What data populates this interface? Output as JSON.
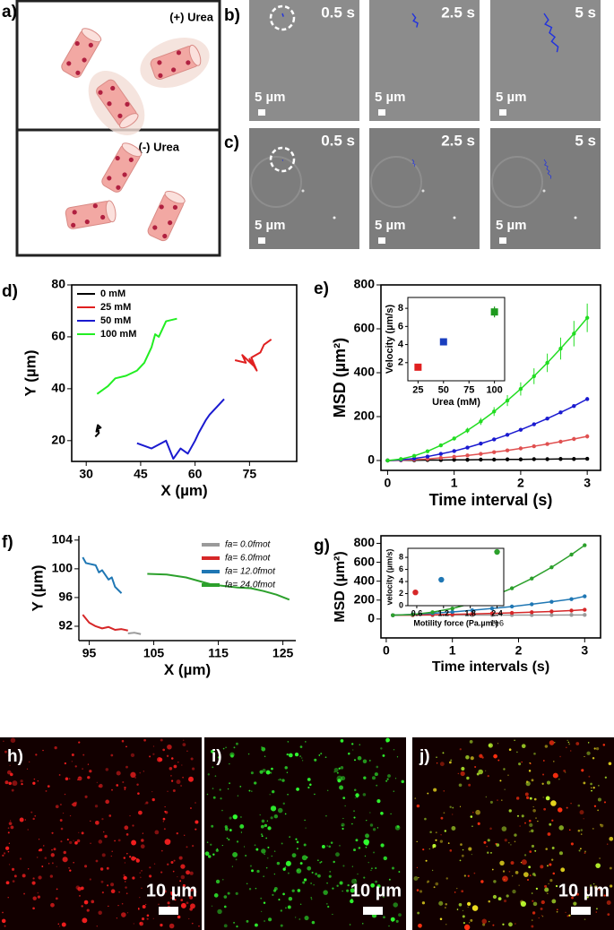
{
  "panel_labels": [
    "a)",
    "b)",
    "c)",
    "d)",
    "e)",
    "f)",
    "g)",
    "h)",
    "i)",
    "j)"
  ],
  "schematic": {
    "top_label": "(+) Urea",
    "bottom_label": "(-) Urea"
  },
  "micrographs": {
    "times": [
      "0.5 s",
      "2.5 s",
      "5 s"
    ],
    "scale_bar": "5 µm"
  },
  "fluorescence": {
    "scale_bar": "10 µm"
  },
  "chart_data": [
    {
      "type": "line",
      "xlabel": "X (µm)",
      "ylabel": "Y (µm)",
      "xlim": [
        26,
        88
      ],
      "ylim": [
        12,
        80
      ],
      "xticks": [
        30,
        45,
        60,
        75
      ],
      "yticks": [
        20,
        40,
        60,
        80
      ],
      "legend": "upper left",
      "series": [
        {
          "name": "0 mM",
          "color": "#000000",
          "x": [
            32.5,
            33.5,
            33,
            34,
            33.2,
            32.8,
            33.6
          ],
          "values": [
            21.5,
            23,
            24.5,
            25,
            26,
            23.5,
            24
          ]
        },
        {
          "name": "25 mM",
          "color": "#e02020",
          "x": [
            71,
            74,
            73,
            76,
            75,
            77,
            75.5,
            78,
            79,
            81
          ],
          "values": [
            51,
            50,
            53,
            49,
            51.5,
            47,
            52,
            54,
            57,
            59
          ]
        },
        {
          "name": "50 mM",
          "color": "#1a1ad0",
          "x": [
            44,
            48,
            52,
            54,
            56,
            58,
            60,
            61,
            63,
            64,
            66,
            68
          ],
          "values": [
            19,
            17,
            20,
            13,
            17,
            15,
            20,
            23,
            28,
            30,
            33,
            36
          ]
        },
        {
          "name": "100 mM",
          "color": "#22ee22",
          "x": [
            33,
            36,
            38,
            41,
            44,
            46,
            48,
            49,
            50,
            52,
            55
          ],
          "values": [
            38,
            41,
            44,
            45,
            47,
            50,
            56,
            61,
            60,
            66,
            67
          ]
        }
      ]
    },
    {
      "type": "line",
      "markers": true,
      "xlabel": "Time interval (s)",
      "ylabel": "MSD (µm²)",
      "xlim": [
        -0.1,
        3.2
      ],
      "ylim": [
        -45,
        800
      ],
      "xticks": [
        0,
        1,
        2,
        3
      ],
      "yticks": [
        0,
        200,
        400,
        600,
        800
      ],
      "x": [
        0,
        0.2,
        0.4,
        0.6,
        0.8,
        1.0,
        1.2,
        1.4,
        1.6,
        1.8,
        2.0,
        2.2,
        2.4,
        2.6,
        2.8,
        3.0
      ],
      "series": [
        {
          "name": "0 mM",
          "color": "#000000",
          "values": [
            0,
            1,
            1,
            2,
            2,
            3,
            3,
            4,
            4,
            5,
            5,
            6,
            6,
            7,
            7,
            8
          ]
        },
        {
          "name": "25 mM",
          "color": "#e05050",
          "values": [
            0,
            1,
            4,
            7,
            12,
            17,
            23,
            30,
            38,
            46,
            55,
            65,
            75,
            86,
            98,
            110
          ],
          "errors": [
            0,
            1,
            1,
            1,
            2,
            2,
            3,
            3,
            4,
            5,
            5,
            6,
            7,
            8,
            9,
            10
          ]
        },
        {
          "name": "50 mM",
          "color": "#1a1ad0",
          "values": [
            0,
            3,
            9,
            18,
            30,
            43,
            59,
            77,
            96,
            117,
            140,
            165,
            191,
            219,
            248,
            280
          ],
          "errors": [
            0,
            1,
            1,
            1,
            2,
            2,
            2,
            3,
            3,
            4,
            4,
            5,
            6,
            6,
            7,
            8
          ]
        },
        {
          "name": "100 mM",
          "color": "#22dd22",
          "values": [
            0,
            6.5,
            21,
            42,
            69,
            100,
            137,
            178,
            223,
            273,
            326,
            384,
            445,
            510,
            578,
            650
          ],
          "errors": [
            0,
            1,
            2,
            4,
            6,
            9,
            12,
            16,
            20,
            25,
            30,
            36,
            42,
            50,
            58,
            65
          ]
        }
      ]
    },
    {
      "type": "scatter",
      "marker": "square",
      "xlabel": "Urea (mM)",
      "ylabel": "Velocity (µm/s)",
      "xlim": [
        15,
        110
      ],
      "ylim": [
        0,
        9.2
      ],
      "xticks": [
        25,
        50,
        75,
        100
      ],
      "yticks": [
        2,
        4,
        6,
        8
      ],
      "x": [
        25,
        50,
        100
      ],
      "values": [
        1.5,
        4.3,
        7.6
      ],
      "errors": [
        0.3,
        0.3,
        0.6
      ],
      "colors": [
        "#e02020",
        "#1a3fbf",
        "#1e9a1e"
      ]
    },
    {
      "type": "line",
      "xlabel": "X (µm)",
      "ylabel": "Y (µm)",
      "xlim": [
        93.4,
        127
      ],
      "ylim": [
        90,
        104.6
      ],
      "xticks": [
        95,
        105,
        115,
        125
      ],
      "yticks": [
        92,
        96,
        100,
        104
      ],
      "legend": "upper right",
      "series": [
        {
          "name": "fa= 0.0fmot",
          "color": "#9a9a9a",
          "x": [
            101,
            102,
            103
          ],
          "values": [
            91,
            91.1,
            90.9
          ]
        },
        {
          "name": "fa= 6.0fmot",
          "color": "#d62728",
          "x": [
            94,
            95,
            96,
            97,
            98,
            99,
            100,
            101
          ],
          "values": [
            93.6,
            92.5,
            92,
            91.7,
            91.9,
            91.5,
            91.6,
            91.4
          ]
        },
        {
          "name": "fa= 12.0fmot",
          "color": "#1f77b4",
          "x": [
            94,
            94.5,
            96,
            96.5,
            97,
            98,
            98.5,
            99,
            100
          ],
          "values": [
            101.6,
            100.8,
            100.5,
            99.5,
            99.8,
            98.5,
            98.8,
            97.5,
            96.6
          ]
        },
        {
          "name": "fa= 24.0fmot",
          "color": "#2ca02c",
          "x": [
            104,
            107,
            110,
            112,
            114,
            116,
            118,
            120,
            122,
            124,
            126
          ],
          "values": [
            99.3,
            99.2,
            98.8,
            98.3,
            97.8,
            97.6,
            97.4,
            97.3,
            96.9,
            96.4,
            95.7
          ]
        }
      ]
    },
    {
      "type": "line",
      "markers": true,
      "xlabel": "Time intervals (s)",
      "ylabel": "MSD (µm²)",
      "xlim": [
        -0.08,
        3.24
      ],
      "ylim": [
        -200,
        880
      ],
      "xticks": [
        0,
        1,
        2,
        3
      ],
      "yticks": [
        0,
        200,
        400,
        600,
        800
      ],
      "x": [
        0.1,
        0.4,
        0.7,
        1.0,
        1.3,
        1.6,
        1.9,
        2.2,
        2.5,
        2.8,
        3.0
      ],
      "series": [
        {
          "name": "fa= 0.0fmot",
          "color": "#9a9a9a",
          "values": [
            40,
            40,
            41,
            41,
            41,
            42,
            42,
            42,
            42,
            43,
            43
          ]
        },
        {
          "name": "fa= 6.0fmot",
          "color": "#d62728",
          "values": [
            40,
            42,
            45,
            49,
            54,
            59,
            65,
            72,
            80,
            89,
            98
          ]
        },
        {
          "name": "fa= 12.0fmot",
          "color": "#1f77b4",
          "values": [
            40,
            49,
            61,
            75,
            92,
            111,
            132,
            156,
            182,
            210,
            240
          ]
        },
        {
          "name": "fa= 24.0fmot",
          "color": "#2ca02c",
          "values": [
            40,
            48,
            72,
            111,
            167,
            238,
            325,
            428,
            547,
            681,
            780
          ]
        }
      ]
    },
    {
      "type": "scatter",
      "marker": "circle",
      "xlabel": "Motility force (Pa.µm³)",
      "ylabel": "velocity (µm/s)",
      "x_offset_label": "1e6",
      "xlim": [
        0.4,
        2.55
      ],
      "ylim": [
        0,
        9.5
      ],
      "xticks": [
        0.6,
        1.2,
        1.8,
        2.4
      ],
      "yticks": [
        0,
        2,
        4,
        6,
        8
      ],
      "x": [
        0.57,
        1.15,
        2.4
      ],
      "values": [
        2.2,
        4.3,
        8.9
      ],
      "colors": [
        "#d62728",
        "#1f77b4",
        "#2ca02c"
      ]
    }
  ]
}
